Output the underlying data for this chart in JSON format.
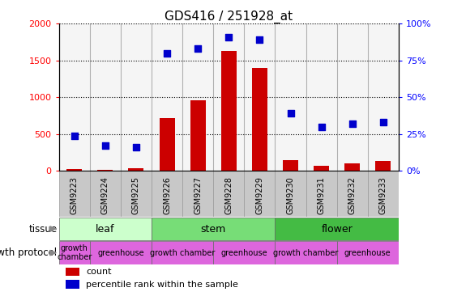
{
  "title": "GDS416 / 251928_at",
  "samples": [
    "GSM9223",
    "GSM9224",
    "GSM9225",
    "GSM9226",
    "GSM9227",
    "GSM9228",
    "GSM9229",
    "GSM9230",
    "GSM9231",
    "GSM9232",
    "GSM9233"
  ],
  "counts": [
    30,
    10,
    40,
    720,
    960,
    1630,
    1400,
    150,
    70,
    100,
    130
  ],
  "percentiles": [
    24,
    17,
    16,
    80,
    83,
    91,
    89,
    39,
    30,
    32,
    33
  ],
  "tissue_groups": [
    {
      "label": "leaf",
      "start": 0,
      "end": 3,
      "color": "#ccffcc"
    },
    {
      "label": "stem",
      "start": 3,
      "end": 7,
      "color": "#77dd77"
    },
    {
      "label": "flower",
      "start": 7,
      "end": 11,
      "color": "#44bb44"
    }
  ],
  "growth_protocol_groups": [
    {
      "label": "growth\nchamber",
      "start": 0,
      "end": 1,
      "color": "#dd66dd"
    },
    {
      "label": "greenhouse",
      "start": 1,
      "end": 3,
      "color": "#dd66dd"
    },
    {
      "label": "growth chamber",
      "start": 3,
      "end": 5,
      "color": "#dd66dd"
    },
    {
      "label": "greenhouse",
      "start": 5,
      "end": 7,
      "color": "#dd66dd"
    },
    {
      "label": "growth chamber",
      "start": 7,
      "end": 9,
      "color": "#dd66dd"
    },
    {
      "label": "greenhouse",
      "start": 9,
      "end": 11,
      "color": "#dd66dd"
    }
  ],
  "bar_color": "#cc0000",
  "dot_color": "#0000cc",
  "left_ylim": [
    0,
    2000
  ],
  "right_ylim": [
    0,
    100
  ],
  "left_yticks": [
    0,
    500,
    1000,
    1500,
    2000
  ],
  "right_yticks": [
    0,
    25,
    50,
    75,
    100
  ],
  "title_fontsize": 11,
  "bar_width": 0.5,
  "tissue_label": "tissue",
  "growth_label": "growth protocol",
  "legend_count": "count",
  "legend_percentile": "percentile rank within the sample",
  "sample_bg_color": "#c8c8c8",
  "chart_bg_color": "#ffffff",
  "col_divider_color": "#999999"
}
